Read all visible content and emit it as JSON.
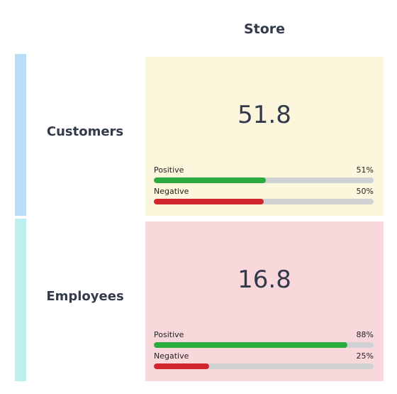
{
  "chart_data": {
    "type": "table",
    "column_header": "Store",
    "rows": [
      {
        "key": "customers",
        "label": "Customers",
        "score": "51.8",
        "bar_color": "#b9dcf7",
        "cell_color": "#fcf7dc",
        "metrics": [
          {
            "key": "positive",
            "label": "Positive",
            "value": 51,
            "value_text": "51%",
            "color": "#2aab3e"
          },
          {
            "key": "negative",
            "label": "Negative",
            "value": 50,
            "value_text": "50%",
            "color": "#d2262e"
          }
        ]
      },
      {
        "key": "employees",
        "label": "Employees",
        "score": "16.8",
        "bar_color": "#bdeff1",
        "cell_color": "#f9d8dc",
        "metrics": [
          {
            "key": "positive",
            "label": "Positive",
            "value": 88,
            "value_text": "88%",
            "color": "#2aab3e"
          },
          {
            "key": "negative",
            "label": "Negative",
            "value": 25,
            "value_text": "25%",
            "color": "#d2262e"
          }
        ]
      }
    ]
  }
}
